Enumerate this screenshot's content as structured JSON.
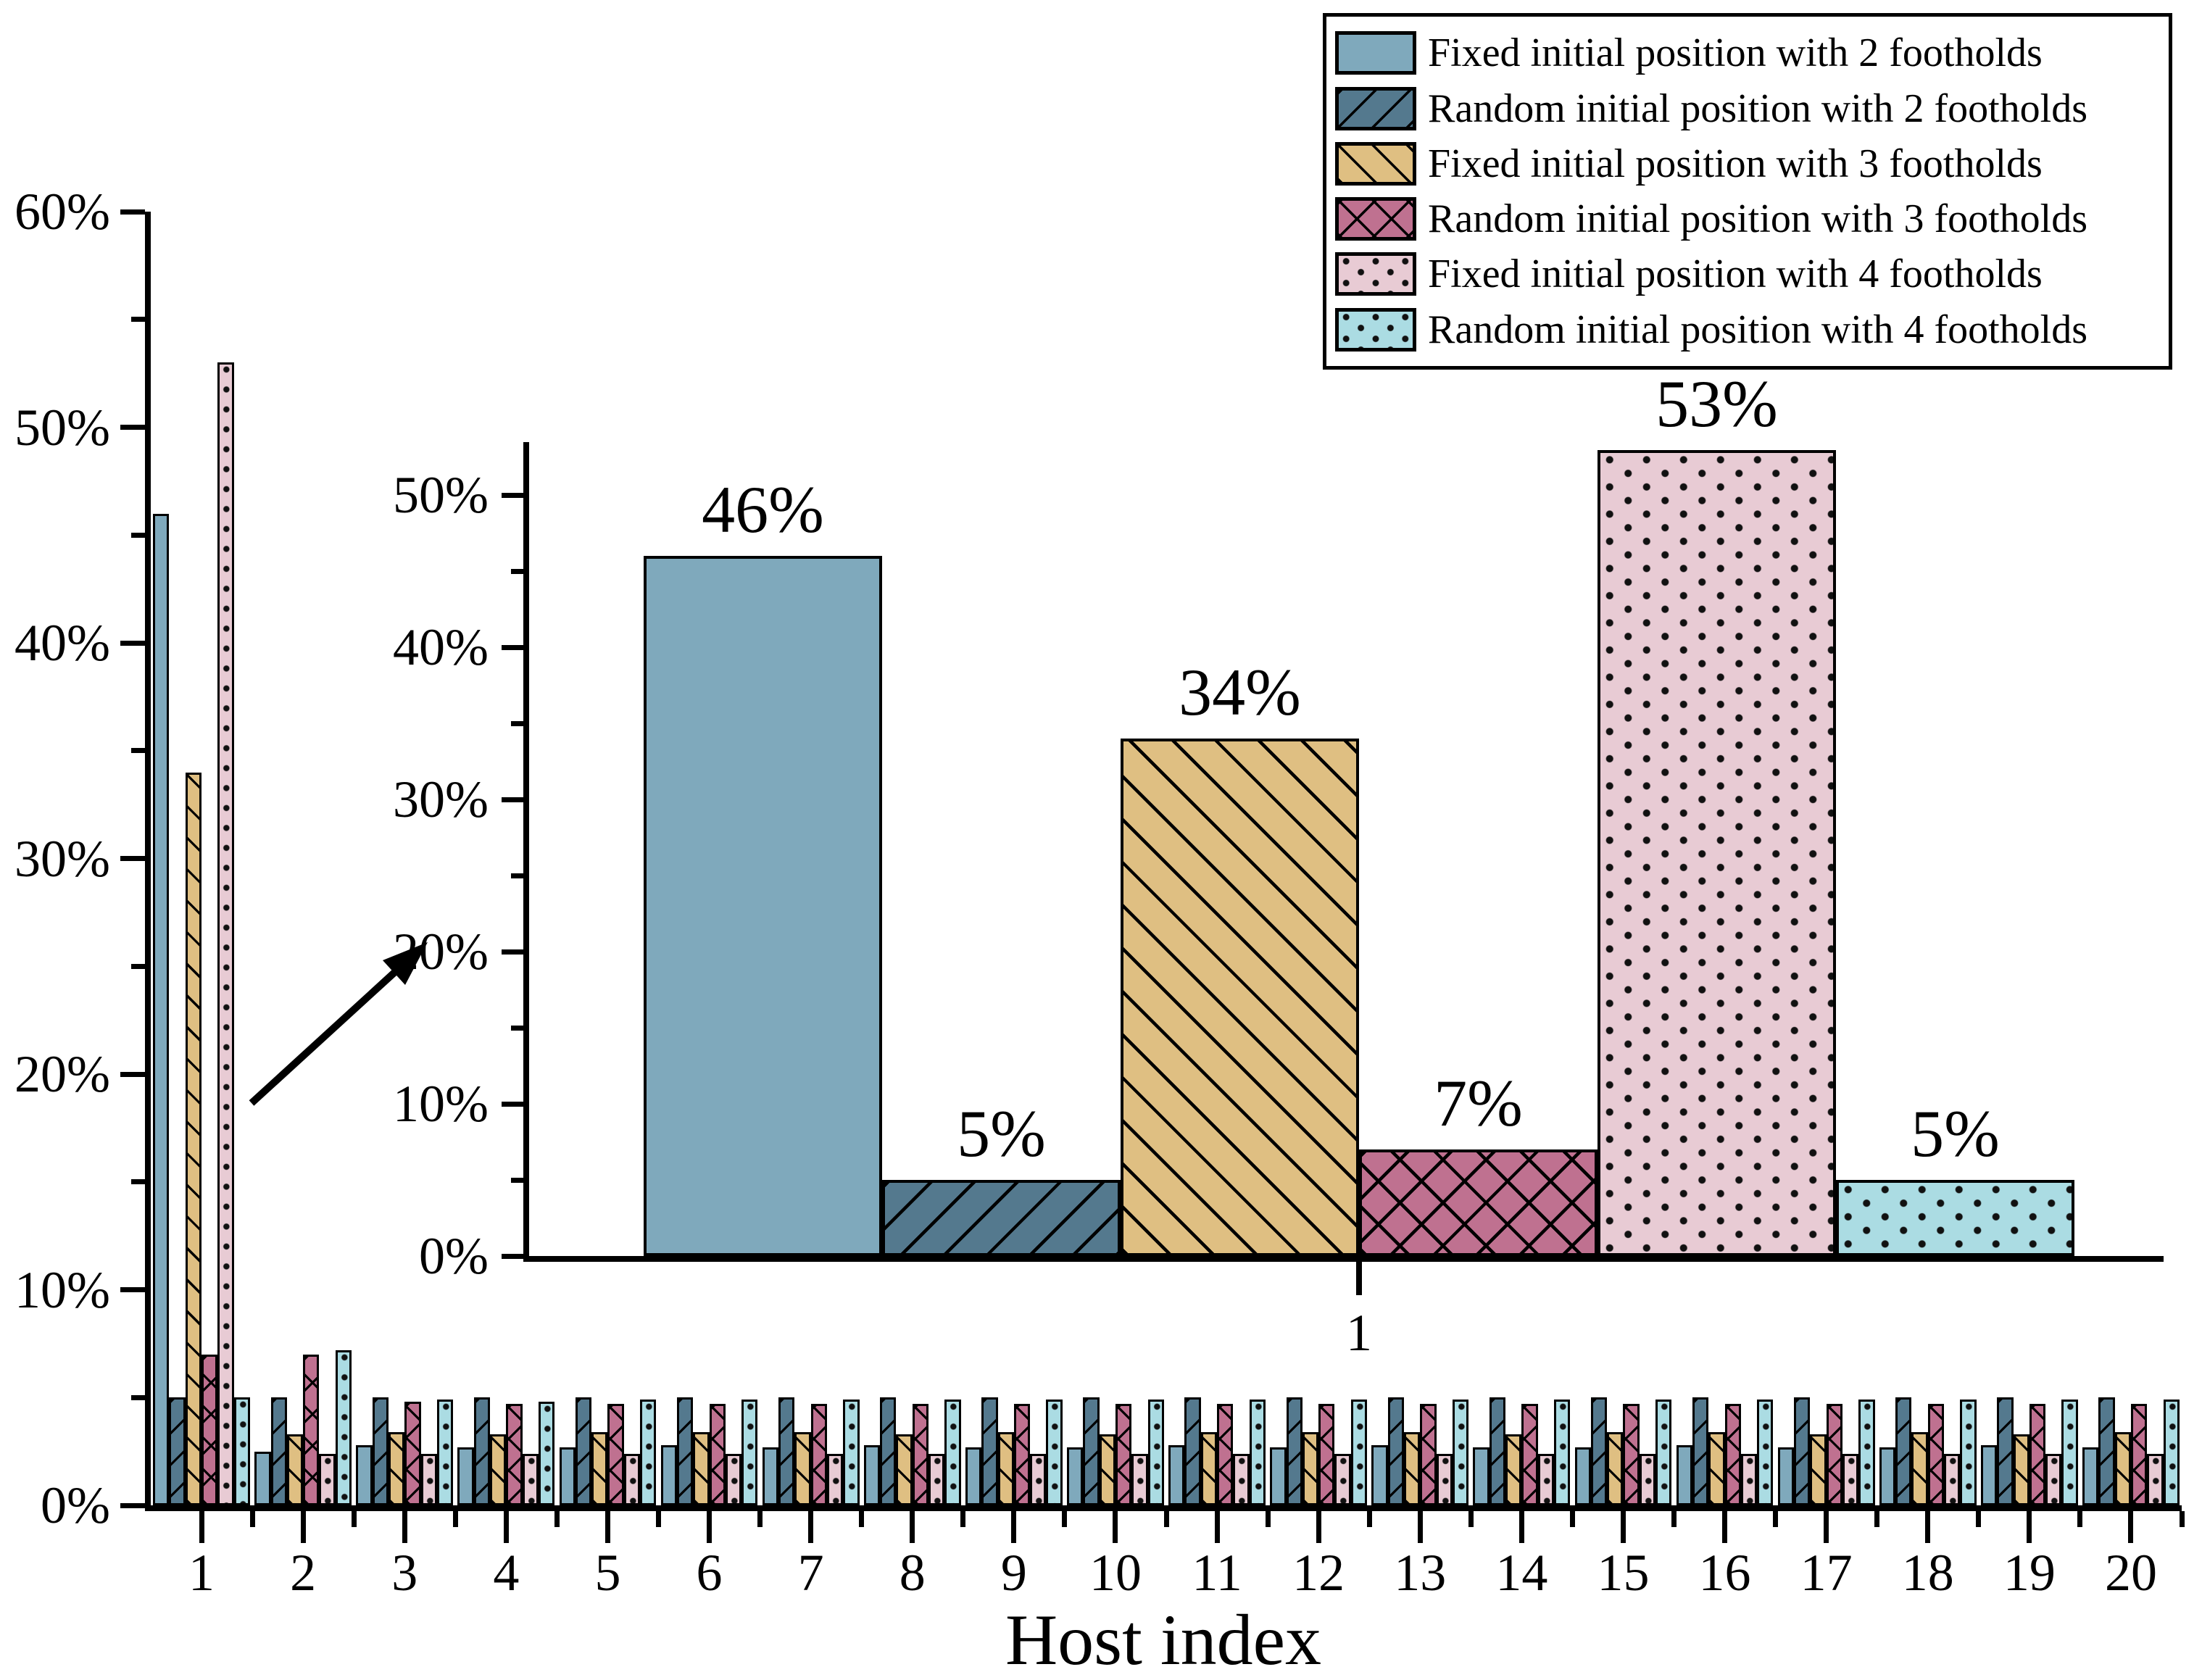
{
  "figure": {
    "background": "#ffffff",
    "accent_black": "#000000"
  },
  "chart_data": [
    {
      "id": "main-chart",
      "type": "bar",
      "title": "",
      "xlabel": "Host index",
      "ylabel": "",
      "grid": false,
      "legend_position": "top-right",
      "ylim": [
        0,
        60
      ],
      "y_major_tick_step": 10,
      "y_minor_tick_step": 5,
      "y_tick_labels": [
        "0%",
        "10%",
        "20%",
        "30%",
        "40%",
        "50%",
        "60%"
      ],
      "categories": [
        1,
        2,
        3,
        4,
        5,
        6,
        7,
        8,
        9,
        10,
        11,
        12,
        13,
        14,
        15,
        16,
        17,
        18,
        19,
        20
      ],
      "x_tick_labels": [
        "1",
        "2",
        "3",
        "4",
        "5",
        "6",
        "7",
        "8",
        "9",
        "10",
        "11",
        "12",
        "13",
        "14",
        "15",
        "16",
        "17",
        "18",
        "19",
        "20"
      ],
      "series": [
        {
          "name": "Fixed initial position with 2 footholds",
          "key": "fixed2",
          "color": "#7FA9BC",
          "pattern": "solid",
          "values": [
            46,
            2.5,
            2.8,
            2.7,
            2.7,
            2.8,
            2.7,
            2.8,
            2.7,
            2.7,
            2.8,
            2.7,
            2.8,
            2.7,
            2.7,
            2.8,
            2.7,
            2.7,
            2.8,
            2.7
          ]
        },
        {
          "name": "Random initial position with 2 footholds",
          "key": "random2",
          "color": "#54798E",
          "pattern": "hatch-forward",
          "values": [
            5,
            5,
            5,
            5,
            5,
            5,
            5,
            5,
            5,
            5,
            5,
            5,
            5,
            5,
            5,
            5,
            5,
            5,
            5,
            5
          ]
        },
        {
          "name": "Fixed initial position with 3 footholds",
          "key": "fixed3",
          "color": "#DFBF82",
          "pattern": "hatch-back",
          "values": [
            34,
            3.3,
            3.4,
            3.3,
            3.4,
            3.4,
            3.4,
            3.3,
            3.4,
            3.3,
            3.4,
            3.4,
            3.4,
            3.3,
            3.4,
            3.4,
            3.3,
            3.4,
            3.3,
            3.4
          ]
        },
        {
          "name": "Random initial position with 3 footholds",
          "key": "random3",
          "color": "#BF7190",
          "pattern": "crosshatch",
          "values": [
            7,
            7,
            4.8,
            4.7,
            4.7,
            4.7,
            4.7,
            4.7,
            4.7,
            4.7,
            4.7,
            4.7,
            4.7,
            4.7,
            4.7,
            4.7,
            4.7,
            4.7,
            4.7,
            4.7
          ]
        },
        {
          "name": "Fixed initial position with 4 footholds",
          "key": "fixed4",
          "color": "#E8CBD4",
          "pattern": "dots",
          "values": [
            53,
            2.4,
            2.4,
            2.4,
            2.4,
            2.4,
            2.4,
            2.4,
            2.4,
            2.4,
            2.4,
            2.4,
            2.4,
            2.4,
            2.4,
            2.4,
            2.4,
            2.4,
            2.4,
            2.4
          ]
        },
        {
          "name": "Random initial position with 4 footholds",
          "key": "random4",
          "color": "#ABDCE3",
          "pattern": "dots",
          "values": [
            5,
            7.2,
            4.9,
            4.8,
            4.9,
            4.9,
            4.9,
            4.9,
            4.9,
            4.9,
            4.9,
            4.9,
            4.9,
            4.9,
            4.9,
            4.9,
            4.9,
            4.9,
            4.9,
            4.9
          ]
        }
      ]
    },
    {
      "id": "inset-chart",
      "type": "bar",
      "title": "",
      "xlabel": "",
      "ylim": [
        0,
        53.5
      ],
      "y_major_tick_step": 10,
      "y_minor_tick_step": 5,
      "y_tick_labels": [
        "0%",
        "10%",
        "20%",
        "30%",
        "40%",
        "50%"
      ],
      "categories": [
        1
      ],
      "x_tick_labels": [
        "1"
      ],
      "bar_value_labels": [
        "46%",
        "5%",
        "34%",
        "7%",
        "53%",
        "5%"
      ],
      "series": [
        {
          "name": "Fixed initial position with 2 footholds",
          "key": "fixed2",
          "color": "#7FA9BC",
          "pattern": "solid",
          "values": [
            46
          ]
        },
        {
          "name": "Random initial position with 2 footholds",
          "key": "random2",
          "color": "#54798E",
          "pattern": "hatch-forward",
          "values": [
            5
          ]
        },
        {
          "name": "Fixed initial position with 3 footholds",
          "key": "fixed3",
          "color": "#DFBF82",
          "pattern": "hatch-back",
          "values": [
            34
          ]
        },
        {
          "name": "Random initial position with 3 footholds",
          "key": "random3",
          "color": "#BF7190",
          "pattern": "crosshatch",
          "values": [
            7
          ]
        },
        {
          "name": "Fixed initial position with 4 footholds",
          "key": "fixed4",
          "color": "#E8CBD4",
          "pattern": "dots",
          "values": [
            53
          ]
        },
        {
          "name": "Random initial position with 4 footholds",
          "key": "random4",
          "color": "#ABDCE3",
          "pattern": "dots",
          "values": [
            5
          ]
        }
      ]
    }
  ]
}
